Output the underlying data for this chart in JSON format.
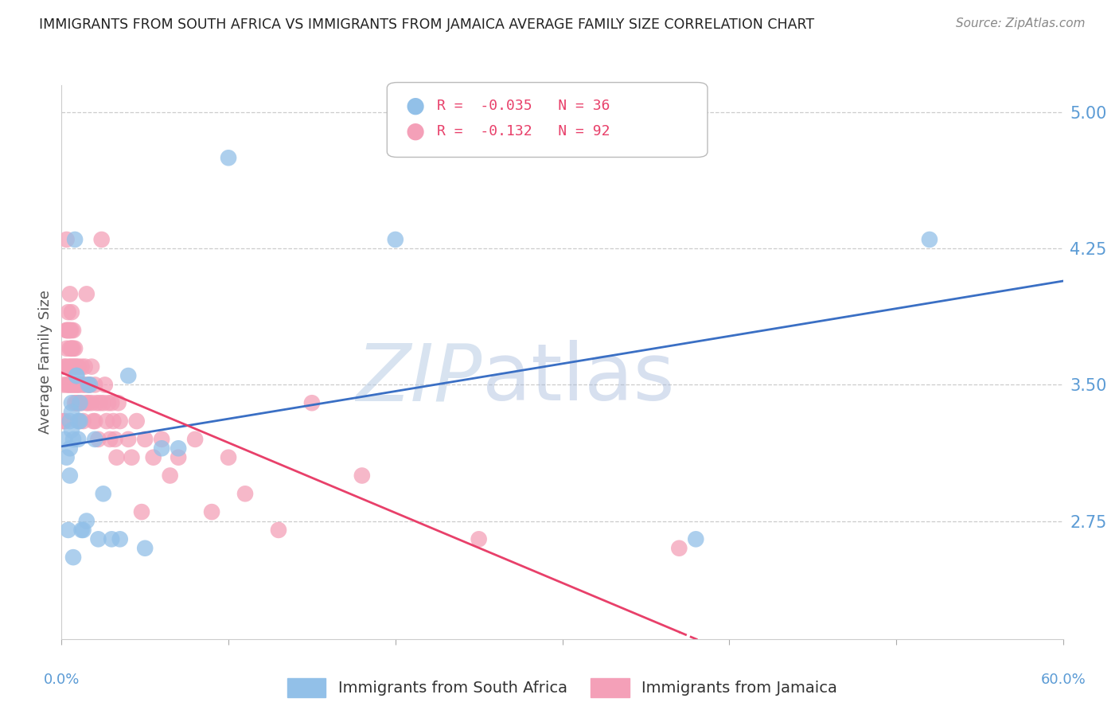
{
  "title": "IMMIGRANTS FROM SOUTH AFRICA VS IMMIGRANTS FROM JAMAICA AVERAGE FAMILY SIZE CORRELATION CHART",
  "source": "Source: ZipAtlas.com",
  "ylabel": "Average Family Size",
  "yticks_right": [
    2.75,
    3.5,
    4.25,
    5.0
  ],
  "xlim": [
    0.0,
    0.6
  ],
  "ylim": [
    2.1,
    5.15
  ],
  "watermark_zip": "ZIP",
  "watermark_atlas": "atlas",
  "south_africa": {
    "color": "#92C0E8",
    "trend_color": "#3A6FC4",
    "R": -0.035,
    "N": 36,
    "x": [
      0.002,
      0.003,
      0.004,
      0.005,
      0.005,
      0.006,
      0.006,
      0.007,
      0.008,
      0.009,
      0.009,
      0.01,
      0.01,
      0.011,
      0.012,
      0.013,
      0.015,
      0.016,
      0.017,
      0.02,
      0.022,
      0.025,
      0.03,
      0.035,
      0.04,
      0.05,
      0.06,
      0.07,
      0.1,
      0.2,
      0.005,
      0.006,
      0.007,
      0.011,
      0.52,
      0.38
    ],
    "y": [
      3.2,
      3.1,
      2.7,
      3.3,
      3.15,
      3.4,
      3.25,
      2.55,
      4.3,
      3.55,
      3.55,
      3.3,
      3.2,
      3.4,
      2.7,
      2.7,
      2.75,
      3.5,
      3.5,
      3.2,
      2.65,
      2.9,
      2.65,
      2.65,
      3.55,
      2.6,
      3.15,
      3.15,
      4.75,
      4.3,
      3.0,
      3.35,
      3.2,
      3.3,
      4.3,
      2.65
    ]
  },
  "jamaica": {
    "color": "#F4A0B8",
    "trend_color": "#E8406A",
    "R": -0.132,
    "N": 92,
    "x": [
      0.001,
      0.001,
      0.002,
      0.002,
      0.002,
      0.003,
      0.003,
      0.003,
      0.003,
      0.003,
      0.004,
      0.004,
      0.004,
      0.004,
      0.004,
      0.005,
      0.005,
      0.005,
      0.005,
      0.005,
      0.005,
      0.006,
      0.006,
      0.006,
      0.006,
      0.006,
      0.006,
      0.007,
      0.007,
      0.007,
      0.007,
      0.008,
      0.008,
      0.008,
      0.008,
      0.009,
      0.009,
      0.009,
      0.01,
      0.01,
      0.01,
      0.011,
      0.011,
      0.012,
      0.012,
      0.013,
      0.013,
      0.014,
      0.014,
      0.015,
      0.015,
      0.016,
      0.016,
      0.017,
      0.018,
      0.018,
      0.019,
      0.02,
      0.02,
      0.021,
      0.022,
      0.023,
      0.024,
      0.025,
      0.026,
      0.027,
      0.028,
      0.029,
      0.03,
      0.031,
      0.032,
      0.033,
      0.034,
      0.035,
      0.04,
      0.042,
      0.045,
      0.048,
      0.05,
      0.055,
      0.06,
      0.065,
      0.07,
      0.08,
      0.09,
      0.1,
      0.11,
      0.13,
      0.15,
      0.18,
      0.25,
      0.37
    ],
    "y": [
      3.3,
      3.5,
      3.6,
      3.3,
      3.6,
      3.7,
      3.8,
      3.5,
      3.8,
      4.3,
      3.8,
      3.6,
      3.8,
      3.9,
      3.5,
      3.7,
      3.8,
      3.5,
      3.6,
      3.8,
      4.0,
      3.5,
      3.6,
      3.7,
      3.7,
      3.8,
      3.9,
      3.5,
      3.6,
      3.7,
      3.8,
      3.5,
      3.6,
      3.4,
      3.7,
      3.5,
      3.4,
      3.6,
      3.5,
      3.6,
      3.4,
      3.5,
      3.3,
      3.6,
      3.4,
      3.5,
      3.3,
      3.5,
      3.6,
      3.4,
      4.0,
      3.5,
      3.4,
      3.5,
      3.4,
      3.6,
      3.3,
      3.5,
      3.3,
      3.4,
      3.2,
      3.4,
      4.3,
      3.4,
      3.5,
      3.3,
      3.4,
      3.2,
      3.4,
      3.3,
      3.2,
      3.1,
      3.4,
      3.3,
      3.2,
      3.1,
      3.3,
      2.8,
      3.2,
      3.1,
      3.2,
      3.0,
      3.1,
      3.2,
      2.8,
      3.1,
      2.9,
      2.7,
      3.4,
      3.0,
      2.65,
      2.6
    ]
  },
  "background_color": "#ffffff",
  "grid_color": "#cccccc",
  "title_color": "#222222",
  "axis_label_color": "#5b9bd5",
  "ylabel_color": "#555555",
  "source_color": "#888888",
  "legend_sa_label": "Immigrants from South Africa",
  "legend_ja_label": "Immigrants from Jamaica"
}
